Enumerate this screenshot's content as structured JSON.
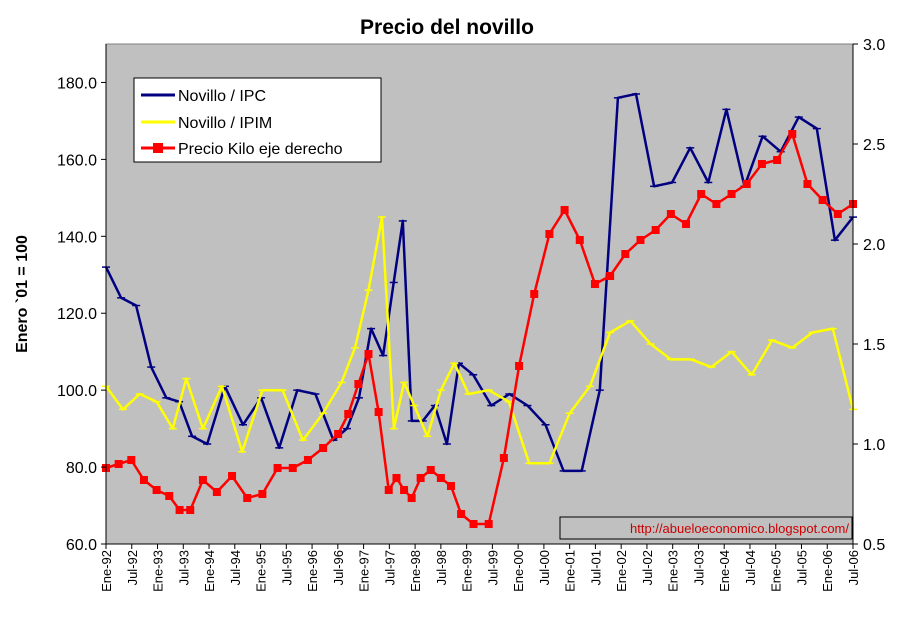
{
  "chart_data": {
    "type": "line",
    "title": "Precio del novillo",
    "ylabel": "Enero `01 = 100",
    "ylim": [
      60,
      190
    ],
    "yticks": [
      "60.0",
      "80.0",
      "100.0",
      "120.0",
      "140.0",
      "160.0",
      "180.0"
    ],
    "y2lim": [
      0.5,
      3.0
    ],
    "y2ticks": [
      "0.5",
      "1.0",
      "1.5",
      "2.0",
      "2.5",
      "3.0"
    ],
    "xtick_labels": [
      "Ene-92",
      "Jul-92",
      "Ene-93",
      "Jul-93",
      "Ene-94",
      "Jul-94",
      "Ene-95",
      "Jul-95",
      "Ene-96",
      "Jul-96",
      "Ene-97",
      "Jul-97",
      "Ene-98",
      "Jul-98",
      "Ene-99",
      "Jul-99",
      "Ene-00",
      "Jul-00",
      "Ene-01",
      "Jul-01",
      "Ene-02",
      "Jul-02",
      "Ene-03",
      "Jul-03",
      "Ene-04",
      "Jul-04",
      "Ene-05",
      "Jul-05",
      "Ene-06",
      "Jul-06"
    ],
    "x_anchor_months": [
      0,
      5,
      10,
      15,
      19,
      24,
      30,
      36,
      42,
      48,
      54,
      58,
      62,
      66,
      69,
      72,
      76,
      80,
      84,
      90,
      96,
      102,
      108,
      114,
      120,
      126,
      132,
      138,
      144,
      150,
      156,
      162,
      168,
      174
    ],
    "legend_position": "top-left",
    "grid": false,
    "series": [
      {
        "name": "Novillo / IPC",
        "axis": "left",
        "color": "#000080",
        "values": [
          132,
          124,
          122,
          106,
          98,
          97,
          88,
          86,
          101,
          91,
          98,
          85,
          100,
          99,
          87,
          90,
          98,
          116,
          109,
          128,
          144,
          92,
          92,
          96,
          86,
          107,
          104,
          96,
          99,
          96,
          91,
          79,
          79,
          100,
          176,
          177,
          153,
          154,
          163,
          154,
          173,
          153,
          166,
          162,
          171,
          168,
          139,
          145
        ]
      },
      {
        "name": "Novillo / IPIM",
        "axis": "left",
        "color": "#ffff00",
        "values": [
          101,
          95,
          99,
          97,
          90,
          103,
          90,
          101,
          84,
          100,
          100,
          87,
          94,
          102,
          111,
          126,
          145,
          90,
          102,
          96,
          88,
          100,
          107,
          99,
          100,
          97,
          81,
          81,
          94,
          101,
          115,
          118,
          112,
          108,
          108,
          106,
          110,
          104,
          113,
          111,
          115,
          116,
          95
        ]
      },
      {
        "name": "Precio Kilo eje derecho",
        "axis": "right",
        "color": "#ff0000",
        "values": [
          0.88,
          0.9,
          0.92,
          0.82,
          0.77,
          0.74,
          0.67,
          0.67,
          0.82,
          0.76,
          0.84,
          0.73,
          0.75,
          0.88,
          0.88,
          0.92,
          0.98,
          1.05,
          1.15,
          1.3,
          1.45,
          1.16,
          0.77,
          0.83,
          0.77,
          0.73,
          0.83,
          0.87,
          0.83,
          0.79,
          0.65,
          0.6,
          0.6,
          0.93,
          1.39,
          1.75,
          2.05,
          2.17,
          2.02,
          1.8,
          1.84,
          1.95,
          2.02,
          2.07,
          2.15,
          2.1,
          2.25,
          2.2,
          2.25,
          2.3,
          2.4,
          2.42,
          2.55,
          2.3,
          2.22,
          2.15,
          2.2
        ]
      }
    ],
    "credit": "http://abueloeconomico.blogspot.com/"
  }
}
